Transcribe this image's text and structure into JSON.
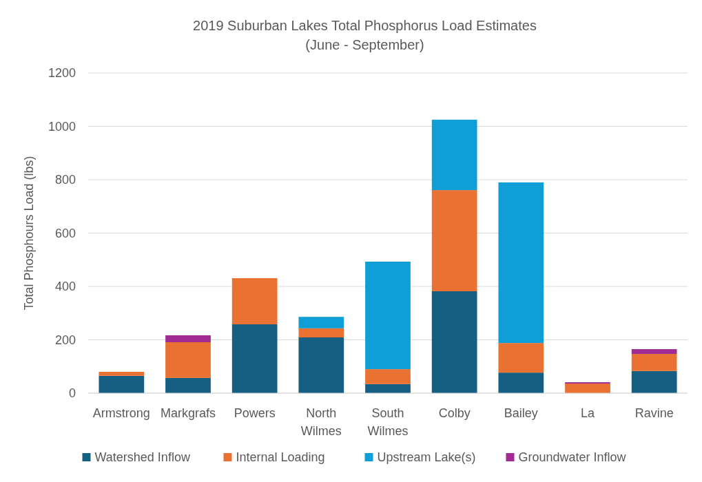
{
  "chart_data": {
    "type": "bar",
    "stacked": true,
    "title": "2019 Suburban Lakes Total Phosphorus Load Estimates",
    "subtitle": "(June - September)",
    "ylabel": "Total Phosphours Load (lbs)",
    "categories": [
      "Armstrong",
      "Markgrafs",
      "Powers",
      "North Wilmes",
      "South Wilmes",
      "Colby",
      "Bailey",
      "La",
      "Ravine"
    ],
    "series": [
      {
        "name": "Watershed Inflow",
        "color": "#156082",
        "values": [
          65,
          57,
          258,
          209,
          34,
          382,
          77,
          null,
          83
        ]
      },
      {
        "name": "Internal Loading",
        "color": "#e97132",
        "values": [
          15,
          134,
          173,
          34,
          56,
          379,
          111,
          36,
          64
        ]
      },
      {
        "name": "Upstream Lake(s)",
        "color": "#0f9ed5",
        "values": [
          0,
          0,
          0,
          43,
          403,
          264,
          602,
          0,
          0
        ]
      },
      {
        "name": "Groundwater Inflow",
        "color": "#a02b93",
        "values": [
          0,
          26,
          0,
          0,
          0,
          0,
          0,
          5,
          18
        ]
      }
    ],
    "ylim": [
      0,
      1200
    ],
    "yticks": [
      0,
      200,
      400,
      600,
      800,
      1000,
      1200
    ],
    "grid": "y",
    "legend": "bottom"
  }
}
